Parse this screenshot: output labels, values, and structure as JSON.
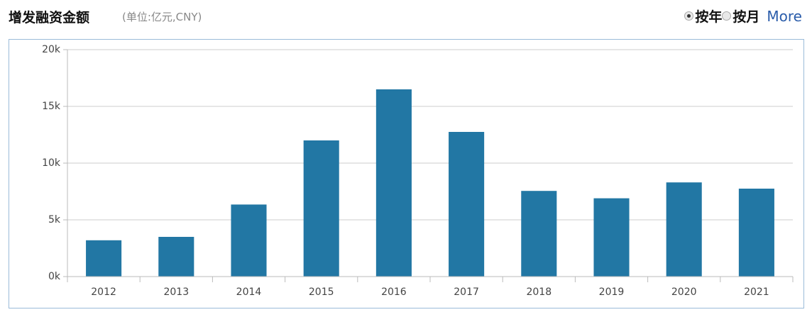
{
  "header": {
    "title": "增发融资金额",
    "unit": "(单位:亿元,CNY)"
  },
  "controls": {
    "options": [
      "按年",
      "按月"
    ],
    "more": "More"
  },
  "chart_data": {
    "type": "bar",
    "categories": [
      "2012",
      "2013",
      "2014",
      "2015",
      "2016",
      "2017",
      "2018",
      "2019",
      "2020",
      "2021"
    ],
    "values": [
      3200,
      3500,
      6350,
      12000,
      16500,
      12750,
      7550,
      6900,
      8300,
      7750
    ],
    "color": "#2277a4",
    "ylim": [
      0,
      20000
    ],
    "yticks": [
      {
        "value": 0,
        "label": "0k"
      },
      {
        "value": 5000,
        "label": "5k"
      },
      {
        "value": 10000,
        "label": "10k"
      },
      {
        "value": 15000,
        "label": "15k"
      },
      {
        "value": 20000,
        "label": "20k"
      }
    ],
    "grid": true
  }
}
